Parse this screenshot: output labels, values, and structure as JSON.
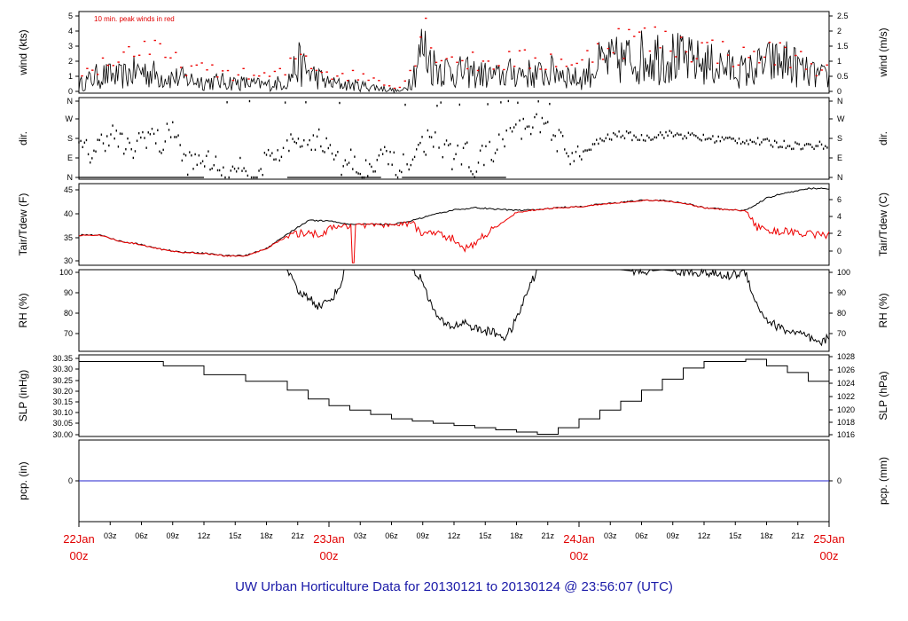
{
  "title": "UW Urban Horticulture Data for 20130121  to  20130124 @ 23:56:07  (UTC)",
  "colors": {
    "primary": "#000000",
    "secondary": "#ee0000",
    "precip": "#2222cc",
    "title": "#1a1aa8",
    "day_label": "#e00000"
  },
  "x_axis": {
    "unit": "hours since 22Jan 00z",
    "range": [
      0,
      72
    ],
    "hour_ticks": [
      {
        "h": 3,
        "label": "03z"
      },
      {
        "h": 6,
        "label": "06z"
      },
      {
        "h": 9,
        "label": "09z"
      },
      {
        "h": 12,
        "label": "12z"
      },
      {
        "h": 15,
        "label": "15z"
      },
      {
        "h": 18,
        "label": "18z"
      },
      {
        "h": 21,
        "label": "21z"
      },
      {
        "h": 27,
        "label": "03z"
      },
      {
        "h": 30,
        "label": "06z"
      },
      {
        "h": 33,
        "label": "09z"
      },
      {
        "h": 36,
        "label": "12z"
      },
      {
        "h": 39,
        "label": "15z"
      },
      {
        "h": 42,
        "label": "18z"
      },
      {
        "h": 45,
        "label": "21z"
      },
      {
        "h": 51,
        "label": "03z"
      },
      {
        "h": 54,
        "label": "06z"
      },
      {
        "h": 57,
        "label": "09z"
      },
      {
        "h": 60,
        "label": "12z"
      },
      {
        "h": 63,
        "label": "15z"
      },
      {
        "h": 66,
        "label": "18z"
      },
      {
        "h": 69,
        "label": "21z"
      }
    ],
    "day_ticks": [
      {
        "h": 0,
        "day": "22Jan",
        "hour": "00z"
      },
      {
        "h": 24,
        "day": "23Jan",
        "hour": "00z"
      },
      {
        "h": 48,
        "day": "24Jan",
        "hour": "00z"
      },
      {
        "h": 72,
        "day": "25Jan",
        "hour": "00z"
      }
    ]
  },
  "chart_data": [
    {
      "type": "line",
      "id": "wind",
      "ylabel_left": "wind (kts)",
      "ylabel_right": "wind (m/s)",
      "note": "10 min. peak winds in red",
      "ylim": [
        0,
        5
      ],
      "left_ticks": [
        "0",
        "1",
        "2",
        "3",
        "4",
        "5"
      ],
      "right_ticks": [
        "0",
        "0.5",
        "1",
        "1.5",
        "2",
        "2.5"
      ],
      "series": [
        {
          "role": "sustained",
          "x": [
            0,
            2,
            4,
            6,
            8,
            10,
            12,
            14,
            16,
            18,
            20,
            21,
            22,
            24,
            26,
            28,
            30,
            31,
            32,
            33,
            34,
            36,
            38,
            40,
            42,
            44,
            46,
            48,
            50,
            52,
            54,
            56,
            58,
            60,
            62,
            64,
            66,
            68,
            70,
            72
          ],
          "y": [
            0.5,
            1.1,
            1.0,
            1.4,
            1.0,
            0.9,
            0.7,
            0.7,
            0.6,
            0.5,
            0.7,
            1.8,
            1.3,
            0.6,
            0.5,
            0.4,
            0.2,
            0.1,
            1.0,
            2.8,
            1.7,
            1.3,
            1.2,
            1.0,
            1.3,
            1.1,
            1.4,
            0.8,
            1.8,
            2.0,
            2.2,
            2.4,
            2.0,
            1.8,
            1.6,
            1.3,
            1.8,
            1.9,
            1.2,
            0.9
          ]
        },
        {
          "role": "peak",
          "x": [
            0,
            2,
            4,
            6,
            8,
            10,
            12,
            14,
            16,
            18,
            20,
            21,
            22,
            24,
            26,
            28,
            30,
            31,
            32,
            33,
            34,
            36,
            38,
            40,
            42,
            44,
            46,
            48,
            50,
            52,
            54,
            56,
            58,
            60,
            62,
            64,
            66,
            68,
            70,
            72
          ],
          "y": [
            1.3,
            2.0,
            2.6,
            3.5,
            2.6,
            2.0,
            1.6,
            1.5,
            1.3,
            1.2,
            1.5,
            3.0,
            2.4,
            1.4,
            1.3,
            1.1,
            0.6,
            0.4,
            2.0,
            5.0,
            3.3,
            2.5,
            2.2,
            2.2,
            2.5,
            2.1,
            2.6,
            1.8,
            3.6,
            3.8,
            3.9,
            3.7,
            3.4,
            3.2,
            3.0,
            2.5,
            2.9,
            2.8,
            2.2,
            1.5
          ]
        }
      ]
    },
    {
      "type": "scatter",
      "id": "dir",
      "ylabel_left": "dir.",
      "ylabel_right": "dir.",
      "left_ticks": [
        "N",
        "E",
        "S",
        "W",
        "N"
      ],
      "right_ticks": [
        "N",
        "E",
        "S",
        "W",
        "N"
      ],
      "ylim_deg": [
        0,
        360
      ],
      "series": [
        {
          "name": "direction",
          "x": [
            0,
            1,
            2,
            3,
            4,
            5,
            6,
            7,
            8,
            9,
            10,
            11,
            12,
            13,
            14,
            15,
            16,
            17,
            18,
            19,
            20,
            21,
            22,
            23,
            24,
            25,
            26,
            27,
            28,
            29,
            30,
            31,
            32,
            33,
            34,
            35,
            36,
            37,
            38,
            39,
            40,
            41,
            42,
            43,
            44,
            45,
            46,
            47,
            48,
            50,
            52,
            54,
            56,
            58,
            60,
            62,
            64,
            66,
            68,
            70,
            72
          ],
          "y": [
            140,
            110,
            150,
            210,
            160,
            110,
            190,
            200,
            140,
            250,
            80,
            60,
            90,
            50,
            30,
            60,
            40,
            20,
            80,
            110,
            140,
            150,
            170,
            190,
            120,
            60,
            90,
            30,
            70,
            110,
            60,
            40,
            90,
            150,
            190,
            120,
            90,
            120,
            60,
            100,
            140,
            170,
            230,
            200,
            250,
            210,
            170,
            120,
            90,
            170,
            200,
            180,
            200,
            195,
            180,
            175,
            170,
            160,
            150,
            145,
            150
          ]
        }
      ]
    },
    {
      "type": "line",
      "id": "temp",
      "ylabel_left": "Tair/Tdew (F)",
      "ylabel_right": "Tair/Tdew (C)",
      "ylim": [
        29,
        46
      ],
      "left_ticks": [
        "30",
        "35",
        "40",
        "45"
      ],
      "right_ticks": [
        "0",
        "2",
        "4",
        "6"
      ],
      "series": [
        {
          "role": "tair",
          "x": [
            0,
            2,
            4,
            6,
            8,
            10,
            12,
            14,
            16,
            18,
            20,
            22,
            24,
            26,
            28,
            30,
            32,
            34,
            36,
            38,
            40,
            42,
            44,
            46,
            48,
            50,
            52,
            54,
            56,
            58,
            60,
            62,
            64,
            66,
            68,
            69,
            70,
            72
          ],
          "y": [
            35.3,
            35.3,
            34.0,
            33.3,
            32.3,
            31.7,
            31.5,
            31.0,
            31.0,
            32.5,
            35.5,
            38.3,
            38.3,
            37.5,
            37.6,
            37.5,
            38.3,
            39.5,
            40.5,
            41.0,
            40.7,
            40.4,
            40.6,
            41.0,
            41.2,
            41.7,
            42.1,
            42.5,
            42.5,
            42.0,
            41.0,
            40.6,
            40.4,
            43.0,
            44.2,
            44.5,
            45.0,
            45.0
          ]
        },
        {
          "role": "tdew",
          "x": [
            0,
            2,
            4,
            6,
            8,
            10,
            12,
            14,
            16,
            18,
            20,
            22,
            23,
            24,
            26,
            28,
            30,
            32,
            33,
            34,
            35,
            36,
            37,
            38,
            39,
            40,
            41,
            42,
            44,
            46,
            48,
            50,
            52,
            54,
            56,
            58,
            60,
            62,
            64,
            65,
            66,
            68,
            70,
            72
          ],
          "y": [
            35.3,
            35.3,
            34.0,
            33.3,
            32.3,
            31.7,
            31.5,
            31.0,
            31.0,
            32.5,
            35.0,
            36.0,
            35.3,
            36.5,
            37.5,
            37.6,
            37.5,
            37.8,
            35.5,
            35.8,
            35.0,
            34.5,
            32.5,
            33.5,
            35.5,
            36.8,
            38.5,
            40.0,
            40.6,
            41.0,
            41.2,
            41.7,
            42.1,
            42.5,
            42.5,
            42.0,
            41.0,
            40.6,
            40.4,
            37.0,
            36.2,
            36.0,
            35.5,
            35.2
          ]
        }
      ]
    },
    {
      "type": "line",
      "id": "rh",
      "ylabel_left": "RH (%)",
      "ylabel_right": "RH (%)",
      "ylim": [
        64,
        100
      ],
      "left_ticks": [
        "70",
        "80",
        "90",
        "100"
      ],
      "right_ticks": [
        "70",
        "80",
        "90",
        "100"
      ],
      "series": [
        {
          "role": "rh",
          "x": [
            0,
            20,
            20.5,
            21,
            22,
            23,
            24,
            25,
            25.5,
            26,
            28,
            30,
            32,
            33,
            34,
            35,
            36,
            37,
            38,
            39,
            40,
            41,
            42,
            43,
            44,
            46,
            48,
            50,
            52,
            54,
            56,
            58,
            60,
            62,
            64,
            65,
            66,
            67,
            68,
            69,
            70,
            71,
            72
          ],
          "y": [
            100,
            100,
            95,
            90,
            88,
            84,
            86,
            92,
            100,
            100,
            100,
            100,
            100,
            95,
            82,
            76,
            75,
            77,
            74,
            73,
            72,
            70,
            78,
            90,
            100,
            100,
            100,
            100,
            100,
            99,
            100,
            99,
            99,
            97,
            99,
            85,
            78,
            75,
            73,
            72,
            70,
            67,
            70
          ]
        }
      ]
    },
    {
      "type": "line",
      "id": "slp",
      "ylabel_left": "SLP (inHg)",
      "ylabel_right": "SLP (hPa)",
      "ylim": [
        29.99,
        30.36
      ],
      "left_ticks": [
        "30.00",
        "30.05",
        "30.10",
        "30.15",
        "30.20",
        "30.25",
        "30.30",
        "30.35"
      ],
      "right_ticks": [
        "1016",
        "1018",
        "1020",
        "1022",
        "1024",
        "1026",
        "1028"
      ],
      "series": [
        {
          "role": "slp",
          "x": [
            0,
            8,
            8.1,
            12,
            16,
            20,
            22,
            24,
            26,
            28,
            30,
            32,
            34,
            36,
            38,
            40,
            42,
            44,
            46,
            48,
            50,
            52,
            54,
            56,
            58,
            60,
            62,
            64,
            66,
            68,
            70,
            72
          ],
          "y": [
            30.33,
            30.33,
            30.31,
            30.27,
            30.24,
            30.2,
            30.16,
            30.13,
            30.11,
            30.09,
            30.07,
            30.06,
            30.05,
            30.04,
            30.03,
            30.02,
            30.01,
            30.0,
            30.03,
            30.07,
            30.11,
            30.15,
            30.2,
            30.25,
            30.3,
            30.33,
            30.33,
            30.34,
            30.31,
            30.28,
            30.24,
            30.21
          ]
        }
      ]
    },
    {
      "type": "line",
      "id": "pcp",
      "ylabel_left": "pcp. (in)",
      "ylabel_right": "pcp. (mm)",
      "ylim": [
        -1,
        1
      ],
      "left_ticks": [
        "0"
      ],
      "right_ticks": [
        "0"
      ],
      "series": [
        {
          "role": "pcp",
          "x": [
            0,
            72
          ],
          "y": [
            0,
            0
          ]
        }
      ]
    }
  ]
}
